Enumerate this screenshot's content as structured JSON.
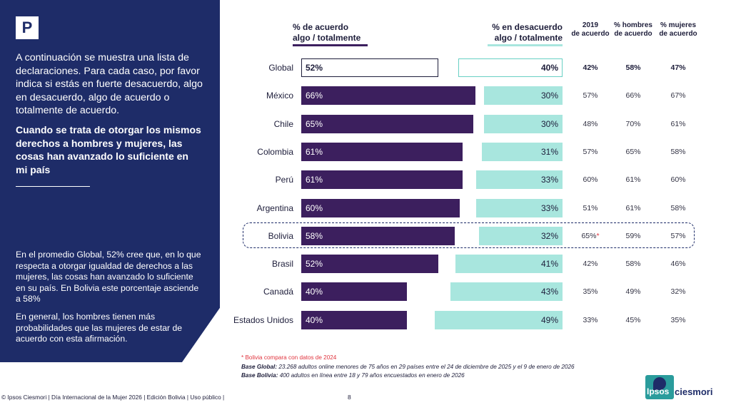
{
  "logo_letter": "P",
  "intro": "A continuación se muestra una lista de declaraciones. Para cada caso, por favor indica si estás en fuerte desacuerdo, algo en desacuerdo, algo de acuerdo o totalmente de acuerdo.",
  "statement": "Cuando se trata de otorgar los mismos derechos a hombres y mujeres, las cosas han avanzado lo suficiente en mi país",
  "summary_1": "En el promedio Global, 52% cree que, en lo que respecta a otorgar igualdad de derechos a las mujeres, las cosas han avanzado lo suficiente en su país. En Bolivia este porcentaje asciende a 58%",
  "summary_2": "En general, los hombres tienen más probabilidades que las mujeres de estar de acuerdo con esta afirmación.",
  "headers": {
    "agree_1": "% de acuerdo",
    "agree_2": "algo / totalmente",
    "disagree_1": "% en desacuerdo",
    "disagree_2": "algo / totalmente",
    "y2019_1": "2019",
    "y2019_2": "de acuerdo",
    "men_1": "% hombres",
    "men_2": "de acuerdo",
    "women_1": "% mujeres",
    "women_2": "de acuerdo"
  },
  "colors": {
    "agree": "#3c1f5e",
    "disagree": "#a8e6de",
    "panel": "#1e2c68",
    "note_red": "#e0343e"
  },
  "chart_data": {
    "type": "bar",
    "categories": [
      "Global",
      "México",
      "Chile",
      "Colombia",
      "Perú",
      "Argentina",
      "Bolivia",
      "Brasil",
      "Canadá",
      "Estados Unidos"
    ],
    "series": [
      {
        "name": "% de acuerdo algo / totalmente",
        "values": [
          52,
          66,
          65,
          61,
          61,
          60,
          58,
          52,
          40,
          40
        ]
      },
      {
        "name": "% en desacuerdo algo / totalmente",
        "values": [
          40,
          30,
          30,
          31,
          33,
          33,
          32,
          41,
          43,
          49
        ]
      }
    ],
    "table_columns": [
      "2019 de acuerdo",
      "% hombres de acuerdo",
      "% mujeres de acuerdo"
    ],
    "table_values": [
      [
        "42%",
        "58%",
        "47%"
      ],
      [
        "57%",
        "66%",
        "67%"
      ],
      [
        "48%",
        "70%",
        "61%"
      ],
      [
        "57%",
        "65%",
        "58%"
      ],
      [
        "60%",
        "61%",
        "60%"
      ],
      [
        "51%",
        "61%",
        "58%"
      ],
      [
        "65%",
        "59%",
        "57%"
      ],
      [
        "42%",
        "58%",
        "46%"
      ],
      [
        "35%",
        "49%",
        "32%"
      ],
      [
        "33%",
        "45%",
        "35%"
      ]
    ],
    "bar_labels_agree": [
      "52%",
      "66%",
      "65%",
      "61%",
      "61%",
      "60%",
      "58%",
      "52%",
      "40%",
      "40%"
    ],
    "bar_labels_disagree": [
      "40%",
      "30%",
      "30%",
      "31%",
      "33%",
      "33%",
      "32%",
      "41%",
      "43%",
      "49%"
    ],
    "highlighted": "Bolivia",
    "asterisk_row": "Bolivia",
    "asterisk": "*"
  },
  "footnotes": {
    "note": "* Bolivia compara con datos de 2024",
    "global_label": "Base Global:",
    "global_text": " 23.268 adultos online menores de 75 años en 29 países entre el 24 de diciembre de 2025 y el 9 de enero de 2026",
    "bolivia_label": "Base Bolivia:",
    "bolivia_text": " 400 adultos en línea entre 18 y 79 años encuestados en enero de 2026"
  },
  "footer": "© Ipsos Ciesmori | Día Internacional de la Mujer 2026 | Edición Bolivia | Uso público |",
  "page_number": "8",
  "brand": {
    "ipsos": "Ipsos",
    "ciesmori": "ciesmori"
  }
}
